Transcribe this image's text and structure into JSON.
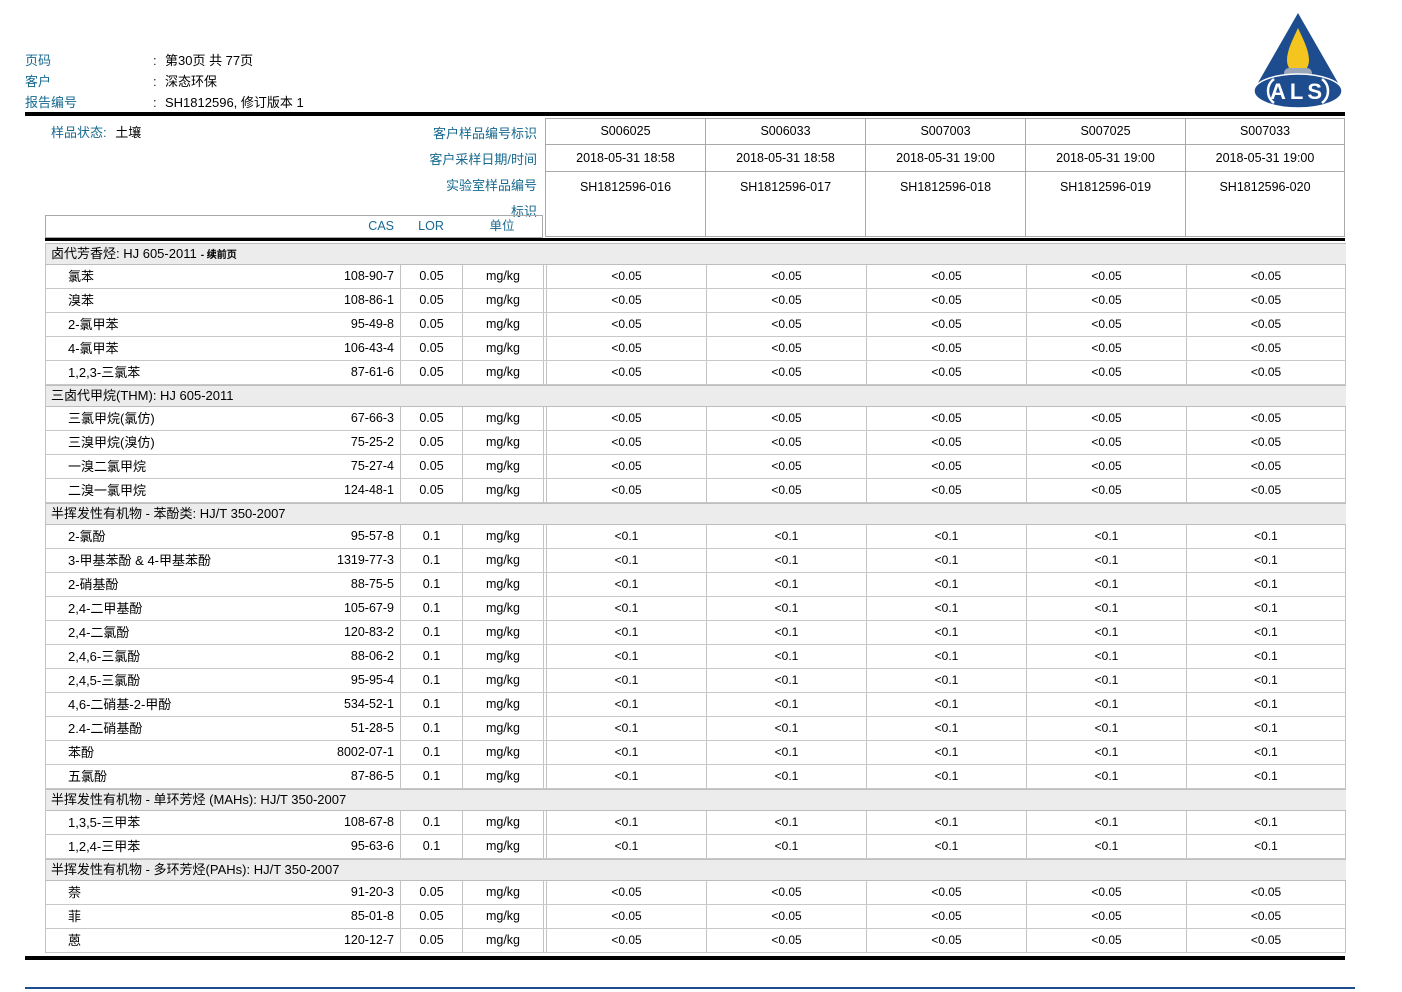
{
  "colors": {
    "accent_teal": "#17698f",
    "logo_navy": "#1d4c8f",
    "logo_flame": "#f3c51e",
    "logo_candle": "#9aa6ba",
    "section_band_bg": "#ececec",
    "grid_border": "#c3c3c3"
  },
  "header": {
    "separator": ":",
    "page": {
      "label": "页码",
      "value": "第30页 共 77页"
    },
    "client": {
      "label": "客户",
      "value": "深态环保"
    },
    "report": {
      "label": "报告编号",
      "value": "SH1812596, 修订版本 1"
    }
  },
  "logo": {
    "text": "ALS"
  },
  "sample_info": {
    "status_label": "样品状态:",
    "status_value": "土壤",
    "row_labels": [
      "客户样品编号标识",
      "客户采样日期/时间",
      "实验室样品编号",
      "标识"
    ],
    "samples": [
      {
        "id": "S006025",
        "datetime": "2018-05-31 18:58",
        "lab_id": "SH1812596-016"
      },
      {
        "id": "S006033",
        "datetime": "2018-05-31 18:58",
        "lab_id": "SH1812596-017"
      },
      {
        "id": "S007003",
        "datetime": "2018-05-31 19:00",
        "lab_id": "SH1812596-018"
      },
      {
        "id": "S007025",
        "datetime": "2018-05-31 19:00",
        "lab_id": "SH1812596-019"
      },
      {
        "id": "S007033",
        "datetime": "2018-05-31 19:00",
        "lab_id": "SH1812596-020"
      }
    ]
  },
  "columns": {
    "cas": "CAS",
    "lor": "LOR",
    "unit": "单位"
  },
  "sections": [
    {
      "title": "卤代芳香烃: HJ 605-2011",
      "title_suffix": "- 续前页",
      "rows": [
        {
          "name": "氯苯",
          "cas": "108-90-7",
          "lor": "0.05",
          "unit": "mg/kg",
          "values": [
            "<0.05",
            "<0.05",
            "<0.05",
            "<0.05",
            "<0.05"
          ]
        },
        {
          "name": "溴苯",
          "cas": "108-86-1",
          "lor": "0.05",
          "unit": "mg/kg",
          "values": [
            "<0.05",
            "<0.05",
            "<0.05",
            "<0.05",
            "<0.05"
          ]
        },
        {
          "name": "2-氯甲苯",
          "cas": "95-49-8",
          "lor": "0.05",
          "unit": "mg/kg",
          "values": [
            "<0.05",
            "<0.05",
            "<0.05",
            "<0.05",
            "<0.05"
          ]
        },
        {
          "name": "4-氯甲苯",
          "cas": "106-43-4",
          "lor": "0.05",
          "unit": "mg/kg",
          "values": [
            "<0.05",
            "<0.05",
            "<0.05",
            "<0.05",
            "<0.05"
          ]
        },
        {
          "name": "1,2,3-三氯苯",
          "cas": "87-61-6",
          "lor": "0.05",
          "unit": "mg/kg",
          "values": [
            "<0.05",
            "<0.05",
            "<0.05",
            "<0.05",
            "<0.05"
          ]
        }
      ]
    },
    {
      "title": "三卤代甲烷(THM): HJ 605-2011",
      "title_suffix": "",
      "rows": [
        {
          "name": "三氯甲烷(氯仿)",
          "cas": "67-66-3",
          "lor": "0.05",
          "unit": "mg/kg",
          "values": [
            "<0.05",
            "<0.05",
            "<0.05",
            "<0.05",
            "<0.05"
          ]
        },
        {
          "name": "三溴甲烷(溴仿)",
          "cas": "75-25-2",
          "lor": "0.05",
          "unit": "mg/kg",
          "values": [
            "<0.05",
            "<0.05",
            "<0.05",
            "<0.05",
            "<0.05"
          ]
        },
        {
          "name": "一溴二氯甲烷",
          "cas": "75-27-4",
          "lor": "0.05",
          "unit": "mg/kg",
          "values": [
            "<0.05",
            "<0.05",
            "<0.05",
            "<0.05",
            "<0.05"
          ]
        },
        {
          "name": "二溴一氯甲烷",
          "cas": "124-48-1",
          "lor": "0.05",
          "unit": "mg/kg",
          "values": [
            "<0.05",
            "<0.05",
            "<0.05",
            "<0.05",
            "<0.05"
          ]
        }
      ]
    },
    {
      "title": "半挥发性有机物 - 苯酚类: HJ/T 350-2007",
      "title_suffix": "",
      "rows": [
        {
          "name": "2-氯酚",
          "cas": "95-57-8",
          "lor": "0.1",
          "unit": "mg/kg",
          "values": [
            "<0.1",
            "<0.1",
            "<0.1",
            "<0.1",
            "<0.1"
          ]
        },
        {
          "name": "3-甲基苯酚 & 4-甲基苯酚",
          "cas": "1319-77-3",
          "lor": "0.1",
          "unit": "mg/kg",
          "values": [
            "<0.1",
            "<0.1",
            "<0.1",
            "<0.1",
            "<0.1"
          ]
        },
        {
          "name": "2-硝基酚",
          "cas": "88-75-5",
          "lor": "0.1",
          "unit": "mg/kg",
          "values": [
            "<0.1",
            "<0.1",
            "<0.1",
            "<0.1",
            "<0.1"
          ]
        },
        {
          "name": "2,4-二甲基酚",
          "cas": "105-67-9",
          "lor": "0.1",
          "unit": "mg/kg",
          "values": [
            "<0.1",
            "<0.1",
            "<0.1",
            "<0.1",
            "<0.1"
          ]
        },
        {
          "name": "2,4-二氯酚",
          "cas": "120-83-2",
          "lor": "0.1",
          "unit": "mg/kg",
          "values": [
            "<0.1",
            "<0.1",
            "<0.1",
            "<0.1",
            "<0.1"
          ]
        },
        {
          "name": "2,4,6-三氯酚",
          "cas": "88-06-2",
          "lor": "0.1",
          "unit": "mg/kg",
          "values": [
            "<0.1",
            "<0.1",
            "<0.1",
            "<0.1",
            "<0.1"
          ]
        },
        {
          "name": "2,4,5-三氯酚",
          "cas": "95-95-4",
          "lor": "0.1",
          "unit": "mg/kg",
          "values": [
            "<0.1",
            "<0.1",
            "<0.1",
            "<0.1",
            "<0.1"
          ]
        },
        {
          "name": "4,6-二硝基-2-甲酚",
          "cas": "534-52-1",
          "lor": "0.1",
          "unit": "mg/kg",
          "values": [
            "<0.1",
            "<0.1",
            "<0.1",
            "<0.1",
            "<0.1"
          ]
        },
        {
          "name": "2.4-二硝基酚",
          "cas": "51-28-5",
          "lor": "0.1",
          "unit": "mg/kg",
          "values": [
            "<0.1",
            "<0.1",
            "<0.1",
            "<0.1",
            "<0.1"
          ]
        },
        {
          "name": "苯酚",
          "cas": "8002-07-1",
          "lor": "0.1",
          "unit": "mg/kg",
          "values": [
            "<0.1",
            "<0.1",
            "<0.1",
            "<0.1",
            "<0.1"
          ]
        },
        {
          "name": "五氯酚",
          "cas": "87-86-5",
          "lor": "0.1",
          "unit": "mg/kg",
          "values": [
            "<0.1",
            "<0.1",
            "<0.1",
            "<0.1",
            "<0.1"
          ]
        }
      ]
    },
    {
      "title": "半挥发性有机物 - 单环芳烃 (MAHs): HJ/T 350-2007",
      "title_suffix": "",
      "rows": [
        {
          "name": "1,3,5-三甲苯",
          "cas": "108-67-8",
          "lor": "0.1",
          "unit": "mg/kg",
          "values": [
            "<0.1",
            "<0.1",
            "<0.1",
            "<0.1",
            "<0.1"
          ]
        },
        {
          "name": "1,2,4-三甲苯",
          "cas": "95-63-6",
          "lor": "0.1",
          "unit": "mg/kg",
          "values": [
            "<0.1",
            "<0.1",
            "<0.1",
            "<0.1",
            "<0.1"
          ]
        }
      ]
    },
    {
      "title": "半挥发性有机物 - 多环芳烃(PAHs): HJ/T 350-2007",
      "title_suffix": "",
      "rows": [
        {
          "name": "萘",
          "cas": "91-20-3",
          "lor": "0.05",
          "unit": "mg/kg",
          "values": [
            "<0.05",
            "<0.05",
            "<0.05",
            "<0.05",
            "<0.05"
          ]
        },
        {
          "name": "菲",
          "cas": "85-01-8",
          "lor": "0.05",
          "unit": "mg/kg",
          "values": [
            "<0.05",
            "<0.05",
            "<0.05",
            "<0.05",
            "<0.05"
          ]
        },
        {
          "name": "蒽",
          "cas": "120-12-7",
          "lor": "0.05",
          "unit": "mg/kg",
          "values": [
            "<0.05",
            "<0.05",
            "<0.05",
            "<0.05",
            "<0.05"
          ]
        }
      ]
    }
  ]
}
